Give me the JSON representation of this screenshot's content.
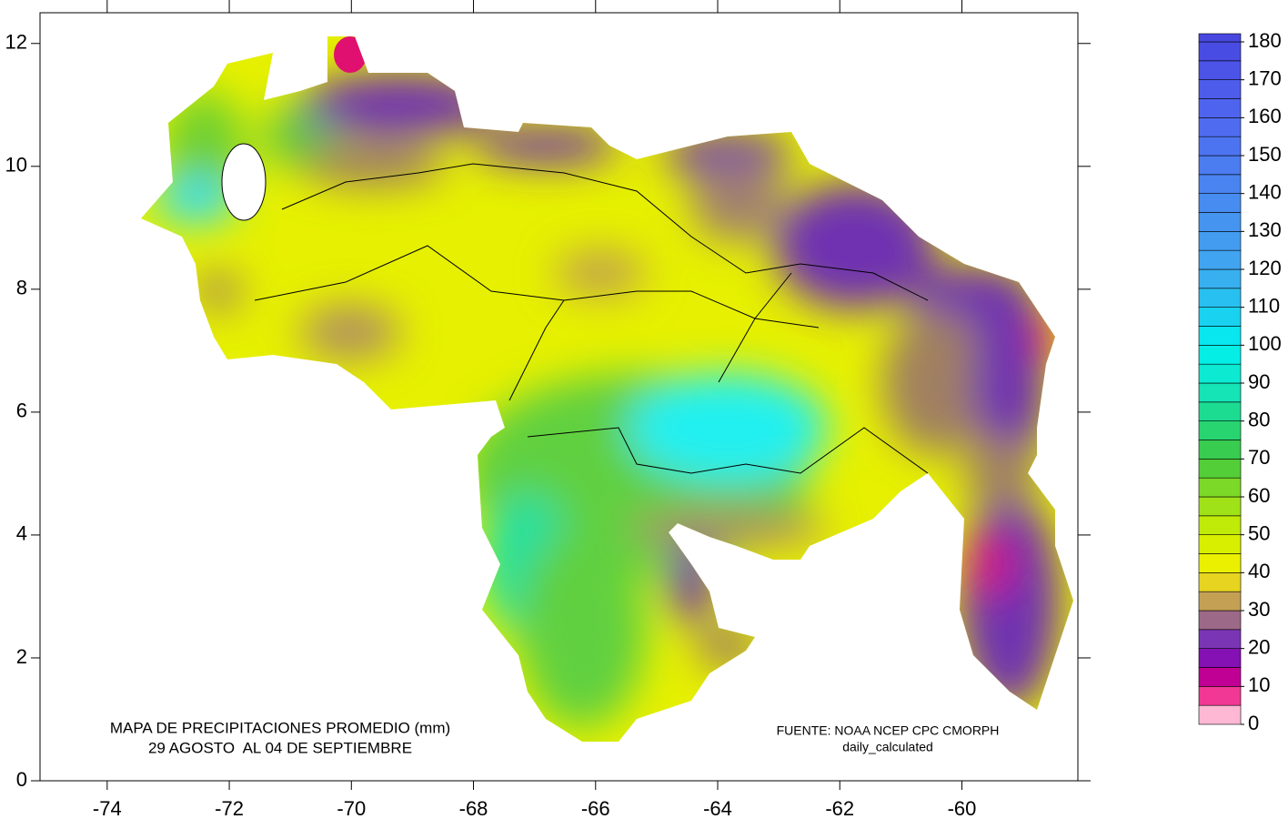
{
  "map": {
    "title_lines": [
      "MAPA DE PRECIPITACIONES PROMEDIO (mm)",
      "29 AGOSTO  AL 04 DE SEPTIEMBRE"
    ],
    "source_lines": [
      "FUENTE: NOAA NCEP CPC CMORPH",
      "daily_calculated"
    ],
    "xlim": [
      -75.1,
      -58.1
    ],
    "ylim": [
      0,
      12.5
    ],
    "xticks": [
      -74,
      -72,
      -70,
      -68,
      -66,
      -64,
      -62,
      -60
    ],
    "yticks": [
      0,
      2,
      4,
      6,
      8,
      10,
      12
    ],
    "colorbar": {
      "lim": [
        0,
        180
      ],
      "step": 5,
      "ticks": [
        0,
        10,
        20,
        30,
        40,
        50,
        60,
        70,
        80,
        90,
        100,
        110,
        120,
        130,
        140,
        150,
        160,
        170,
        180
      ],
      "stops": [
        [
          0,
          "#ffffff"
        ],
        [
          5,
          "#ff70a8"
        ],
        [
          10,
          "#e0007f"
        ],
        [
          15,
          "#a000a8"
        ],
        [
          20,
          "#6a20c0"
        ],
        [
          25,
          "#8a4aa8"
        ],
        [
          30,
          "#b08868"
        ],
        [
          35,
          "#d8b840"
        ],
        [
          40,
          "#f4f000"
        ],
        [
          50,
          "#d0ee00"
        ],
        [
          60,
          "#90de20"
        ],
        [
          70,
          "#40c840"
        ],
        [
          80,
          "#20d880"
        ],
        [
          90,
          "#10e8c8"
        ],
        [
          100,
          "#00f0f0"
        ],
        [
          110,
          "#20c8f0"
        ],
        [
          120,
          "#40a8f0"
        ],
        [
          140,
          "#4888f0"
        ],
        [
          160,
          "#5068f0"
        ],
        [
          180,
          "#4848e0"
        ]
      ]
    }
  }
}
